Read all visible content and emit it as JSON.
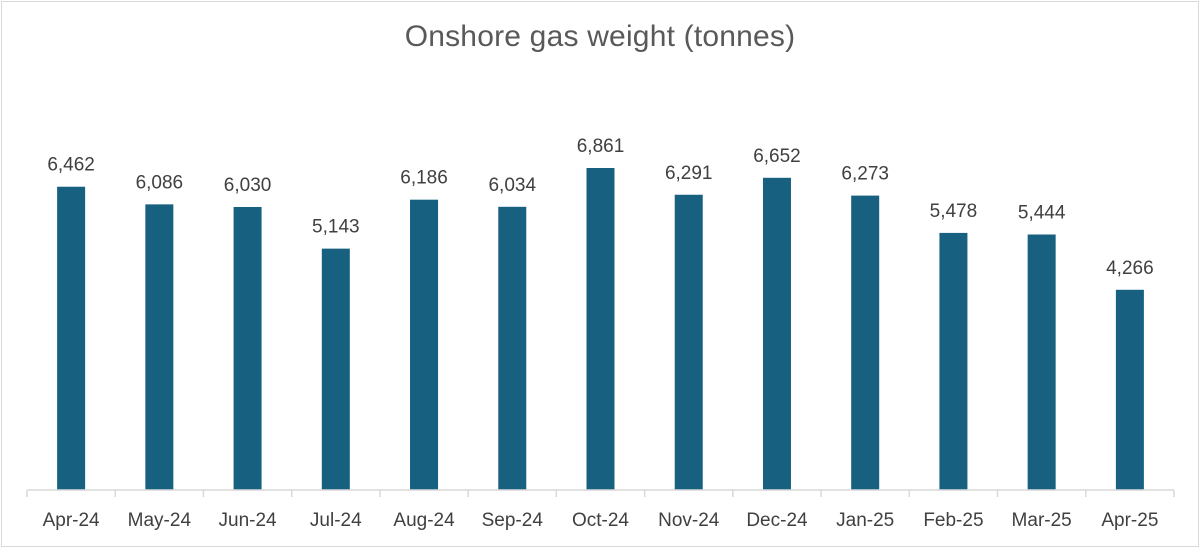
{
  "chart_data": {
    "type": "bar",
    "title": "Onshore gas weight (tonnes)",
    "categories": [
      "Apr-24",
      "May-24",
      "Jun-24",
      "Jul-24",
      "Aug-24",
      "Sep-24",
      "Oct-24",
      "Nov-24",
      "Dec-24",
      "Jan-25",
      "Feb-25",
      "Mar-25",
      "Apr-25"
    ],
    "values": [
      6462,
      6086,
      6030,
      5143,
      6186,
      6034,
      6861,
      6291,
      6652,
      6273,
      5478,
      5444,
      4266
    ],
    "value_labels": [
      "6,462",
      "6,086",
      "6,030",
      "5,143",
      "6,186",
      "6,034",
      "6,861",
      "6,291",
      "6,652",
      "6,273",
      "5,478",
      "5,444",
      "4,266"
    ],
    "xlabel": "",
    "ylabel": "",
    "ylim": [
      0,
      7000
    ],
    "grid": false,
    "legend": "none",
    "bar_color": "#17607f",
    "axis_color": "#d9d9d9"
  }
}
